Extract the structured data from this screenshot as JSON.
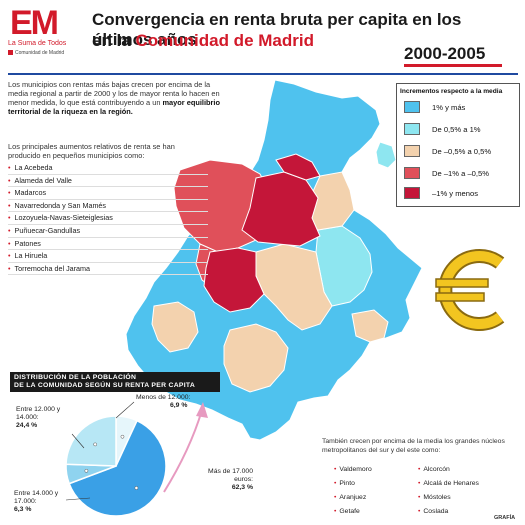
{
  "header": {
    "logo_mark": "EM",
    "logo_tagline": "La Suma de Todos",
    "logo_org": "Comunidad de Madrid",
    "title_line1": "Convergencia en renta bruta per capita en los últimos años",
    "title_line2_prefix": "en la ",
    "title_line2_highlight": "Comunidad de Madrid",
    "period": "2000-2005"
  },
  "intro": {
    "text": "Los municipios con rentas más bajas crecen por encima de la media regional a partir de 2000 y los de mayor renta lo hacen en menor medida, lo que está contribuyendo a un ",
    "bold": "mayor equilibrio territorial de la riqueza en la región.",
    "towns_intro": "Los principales aumentos relativos de renta se han producido en pequeños municipios como:",
    "towns": [
      "La Acebeda",
      "Alameda del Valle",
      "Madarcos",
      "Navarredonda y San Mamés",
      "Lozoyuela-Navas-Sieteiglesias",
      "Puñuecar-Gandullas",
      "Patones",
      "La Hiruela",
      "Torremocha del Jarama"
    ]
  },
  "legend": {
    "title": "Incrementos respecto a la media",
    "items": [
      {
        "label": "1% y más",
        "color": "#4fc2ee"
      },
      {
        "label": "De 0,5% a 1%",
        "color": "#8ee6f0"
      },
      {
        "label": "De –0,5% a 0,5%",
        "color": "#f3d2ae"
      },
      {
        "label": "De –1% a –0,5%",
        "color": "#e0505a"
      },
      {
        "label": "–1% y menos",
        "color": "#c41639"
      }
    ]
  },
  "distribution": {
    "title_line1": "DISTRIBUCIÓN DE LA POBLACIÓN",
    "title_line2": "DE LA COMUNIDAD SEGÚN SU RENTA PER CAPITA",
    "labels": [
      {
        "name": "Menos de 12.000:",
        "value": "6,9 %"
      },
      {
        "name": "Entre 12.000 y 14.000:",
        "value": "24,4 %"
      },
      {
        "name": "Entre 14.000 y 17.000:",
        "value": "6,3 %"
      },
      {
        "name": "Más de 17.000 euros:",
        "value": "62,3 %"
      }
    ]
  },
  "chart_data": {
    "type": "pie",
    "title": "DISTRIBUCIÓN DE LA POBLACIÓN DE LA COMUNIDAD SEGÚN SU RENTA PER CAPITA",
    "categories": [
      "Menos de 12.000",
      "Entre 12.000 y 14.000",
      "Entre 14.000 y 17.000",
      "Más de 17.000 euros"
    ],
    "values": [
      6.9,
      24.4,
      6.3,
      62.3
    ],
    "colors": [
      "#e6f6fb",
      "#b7e7f5",
      "#8fd3ef",
      "#3aa0e6"
    ]
  },
  "metro": {
    "text": "También crecen por encima de la media los grandes núcleos metropolitanos del sur y del este como:",
    "col1": [
      "Valdemoro",
      "Pinto",
      "Aranjuez",
      "Getafe"
    ],
    "col2": [
      "Alcorcón",
      "Alcalá de Henares",
      "Móstoles",
      "Coslada"
    ]
  },
  "credit": "GRAFÍA"
}
